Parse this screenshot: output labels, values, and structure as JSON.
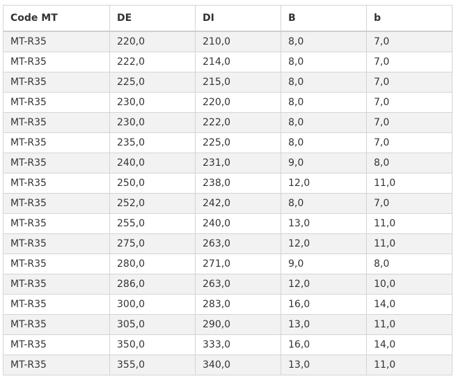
{
  "table": {
    "headers": [
      "Code MT",
      "DE",
      "DI",
      "B",
      "b"
    ],
    "rows": [
      [
        "MT-R35",
        "220,0",
        "210,0",
        "8,0",
        "7,0"
      ],
      [
        "MT-R35",
        "222,0",
        "214,0",
        "8,0",
        "7,0"
      ],
      [
        "MT-R35",
        "225,0",
        "215,0",
        "8,0",
        "7,0"
      ],
      [
        "MT-R35",
        "230,0",
        "220,0",
        "8,0",
        "7,0"
      ],
      [
        "MT-R35",
        "230,0",
        "222,0",
        "8,0",
        "7,0"
      ],
      [
        "MT-R35",
        "235,0",
        "225,0",
        "8,0",
        "7,0"
      ],
      [
        "MT-R35",
        "240,0",
        "231,0",
        "9,0",
        "8,0"
      ],
      [
        "MT-R35",
        "250,0",
        "238,0",
        "12,0",
        "11,0"
      ],
      [
        "MT-R35",
        "252,0",
        "242,0",
        "8,0",
        "7,0"
      ],
      [
        "MT-R35",
        "255,0",
        "240,0",
        "13,0",
        "11,0"
      ],
      [
        "MT-R35",
        "275,0",
        "263,0",
        "12,0",
        "11,0"
      ],
      [
        "MT-R35",
        "280,0",
        "271,0",
        "9,0",
        "8,0"
      ],
      [
        "MT-R35",
        "286,0",
        "263,0",
        "12,0",
        "10,0"
      ],
      [
        "MT-R35",
        "300,0",
        "283,0",
        "16,0",
        "14,0"
      ],
      [
        "MT-R35",
        "305,0",
        "290,0",
        "13,0",
        "11,0"
      ],
      [
        "MT-R35",
        "350,0",
        "333,0",
        "16,0",
        "14,0"
      ],
      [
        "MT-R35",
        "355,0",
        "340,0",
        "13,0",
        "11,0"
      ]
    ]
  }
}
